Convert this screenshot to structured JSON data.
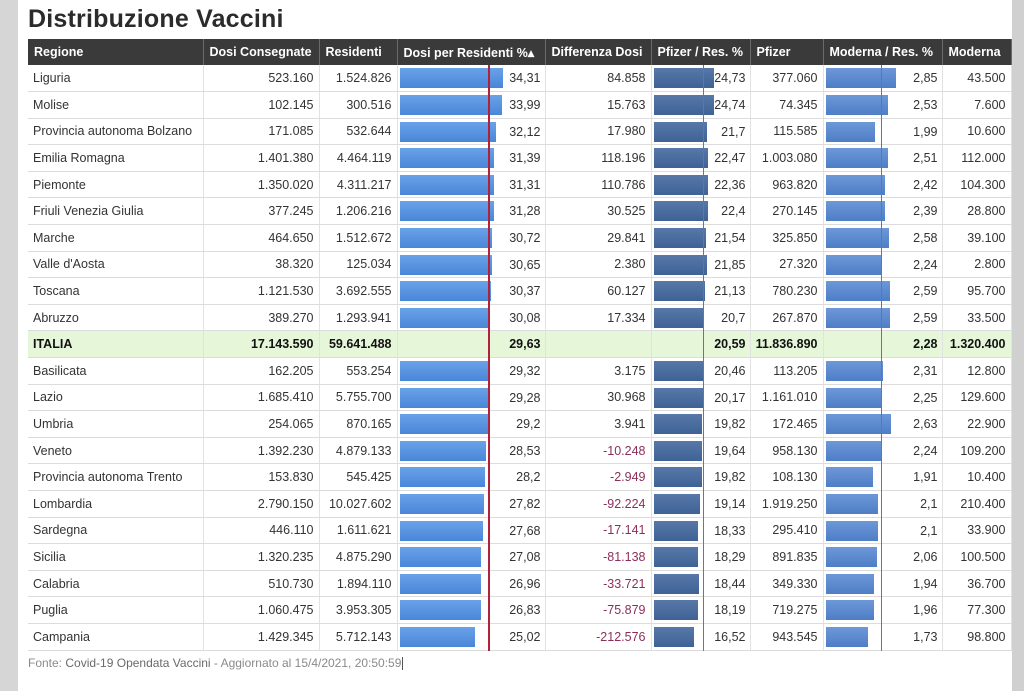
{
  "title": "Distribuzione Vaccini",
  "columns": [
    "Regione",
    "Dosi Consegnate",
    "Residenti",
    "Dosi per Residenti %▴",
    "Differenza Dosi",
    "Pfizer / Res. %",
    "Pfizer",
    "Moderna / Res. %",
    "Moderna"
  ],
  "reference_lines": {
    "dosi_per_residenti": 29.63,
    "pfizer_res": 20.59,
    "moderna_res": 2.28
  },
  "rows": [
    {
      "regione": "Liguria",
      "dosi": "523.160",
      "residenti": "1.524.826",
      "pct": "34,31",
      "pct_value": 34.31,
      "diff": "84.858",
      "pfizer_res": "24,73",
      "pfizer_res_value": 24.73,
      "pfizer": "377.060",
      "moderna_res": "2,85",
      "moderna_res_value": 2.85,
      "moderna": "43.500"
    },
    {
      "regione": "Molise",
      "dosi": "102.145",
      "residenti": "300.516",
      "pct": "33,99",
      "pct_value": 33.99,
      "diff": "15.763",
      "pfizer_res": "24,74",
      "pfizer_res_value": 24.74,
      "pfizer": "74.345",
      "moderna_res": "2,53",
      "moderna_res_value": 2.53,
      "moderna": "7.600"
    },
    {
      "regione": "Provincia autonoma Bolzano",
      "dosi": "171.085",
      "residenti": "532.644",
      "pct": "32,12",
      "pct_value": 32.12,
      "diff": "17.980",
      "pfizer_res": "21,7",
      "pfizer_res_value": 21.7,
      "pfizer": "115.585",
      "moderna_res": "1,99",
      "moderna_res_value": 1.99,
      "moderna": "10.600"
    },
    {
      "regione": "Emilia Romagna",
      "dosi": "1.401.380",
      "residenti": "4.464.119",
      "pct": "31,39",
      "pct_value": 31.39,
      "diff": "118.196",
      "pfizer_res": "22,47",
      "pfizer_res_value": 22.47,
      "pfizer": "1.003.080",
      "moderna_res": "2,51",
      "moderna_res_value": 2.51,
      "moderna": "112.000"
    },
    {
      "regione": "Piemonte",
      "dosi": "1.350.020",
      "residenti": "4.311.217",
      "pct": "31,31",
      "pct_value": 31.31,
      "diff": "110.786",
      "pfizer_res": "22,36",
      "pfizer_res_value": 22.36,
      "pfizer": "963.820",
      "moderna_res": "2,42",
      "moderna_res_value": 2.42,
      "moderna": "104.300"
    },
    {
      "regione": "Friuli Venezia Giulia",
      "dosi": "377.245",
      "residenti": "1.206.216",
      "pct": "31,28",
      "pct_value": 31.28,
      "diff": "30.525",
      "pfizer_res": "22,4",
      "pfizer_res_value": 22.4,
      "pfizer": "270.145",
      "moderna_res": "2,39",
      "moderna_res_value": 2.39,
      "moderna": "28.800"
    },
    {
      "regione": "Marche",
      "dosi": "464.650",
      "residenti": "1.512.672",
      "pct": "30,72",
      "pct_value": 30.72,
      "diff": "29.841",
      "pfizer_res": "21,54",
      "pfizer_res_value": 21.54,
      "pfizer": "325.850",
      "moderna_res": "2,58",
      "moderna_res_value": 2.58,
      "moderna": "39.100"
    },
    {
      "regione": "Valle d'Aosta",
      "dosi": "38.320",
      "residenti": "125.034",
      "pct": "30,65",
      "pct_value": 30.65,
      "diff": "2.380",
      "pfizer_res": "21,85",
      "pfizer_res_value": 21.85,
      "pfizer": "27.320",
      "moderna_res": "2,24",
      "moderna_res_value": 2.24,
      "moderna": "2.800"
    },
    {
      "regione": "Toscana",
      "dosi": "1.121.530",
      "residenti": "3.692.555",
      "pct": "30,37",
      "pct_value": 30.37,
      "diff": "60.127",
      "pfizer_res": "21,13",
      "pfizer_res_value": 21.13,
      "pfizer": "780.230",
      "moderna_res": "2,59",
      "moderna_res_value": 2.59,
      "moderna": "95.700"
    },
    {
      "regione": "Abruzzo",
      "dosi": "389.270",
      "residenti": "1.293.941",
      "pct": "30,08",
      "pct_value": 30.08,
      "diff": "17.334",
      "pfizer_res": "20,7",
      "pfizer_res_value": 20.7,
      "pfizer": "267.870",
      "moderna_res": "2,59",
      "moderna_res_value": 2.59,
      "moderna": "33.500"
    },
    {
      "regione": "ITALIA",
      "total": true,
      "dosi": "17.143.590",
      "residenti": "59.641.488",
      "pct": "29,63",
      "pct_value": 29.63,
      "diff": "",
      "pfizer_res": "20,59",
      "pfizer_res_value": 20.59,
      "pfizer": "11.836.890",
      "moderna_res": "2,28",
      "moderna_res_value": 2.28,
      "moderna": "1.320.400"
    },
    {
      "regione": "Basilicata",
      "dosi": "162.205",
      "residenti": "553.254",
      "pct": "29,32",
      "pct_value": 29.32,
      "diff": "3.175",
      "pfizer_res": "20,46",
      "pfizer_res_value": 20.46,
      "pfizer": "113.205",
      "moderna_res": "2,31",
      "moderna_res_value": 2.31,
      "moderna": "12.800"
    },
    {
      "regione": "Lazio",
      "dosi": "1.685.410",
      "residenti": "5.755.700",
      "pct": "29,28",
      "pct_value": 29.28,
      "diff": "30.968",
      "pfizer_res": "20,17",
      "pfizer_res_value": 20.17,
      "pfizer": "1.161.010",
      "moderna_res": "2,25",
      "moderna_res_value": 2.25,
      "moderna": "129.600"
    },
    {
      "regione": "Umbria",
      "dosi": "254.065",
      "residenti": "870.165",
      "pct": "29,2",
      "pct_value": 29.2,
      "diff": "3.941",
      "pfizer_res": "19,82",
      "pfizer_res_value": 19.82,
      "pfizer": "172.465",
      "moderna_res": "2,63",
      "moderna_res_value": 2.63,
      "moderna": "22.900"
    },
    {
      "regione": "Veneto",
      "dosi": "1.392.230",
      "residenti": "4.879.133",
      "pct": "28,53",
      "pct_value": 28.53,
      "diff": "-10.248",
      "pfizer_res": "19,64",
      "pfizer_res_value": 19.64,
      "pfizer": "958.130",
      "moderna_res": "2,24",
      "moderna_res_value": 2.24,
      "moderna": "109.200"
    },
    {
      "regione": "Provincia autonoma Trento",
      "dosi": "153.830",
      "residenti": "545.425",
      "pct": "28,2",
      "pct_value": 28.2,
      "diff": "-2.949",
      "pfizer_res": "19,82",
      "pfizer_res_value": 19.82,
      "pfizer": "108.130",
      "moderna_res": "1,91",
      "moderna_res_value": 1.91,
      "moderna": "10.400"
    },
    {
      "regione": "Lombardia",
      "dosi": "2.790.150",
      "residenti": "10.027.602",
      "pct": "27,82",
      "pct_value": 27.82,
      "diff": "-92.224",
      "pfizer_res": "19,14",
      "pfizer_res_value": 19.14,
      "pfizer": "1.919.250",
      "moderna_res": "2,1",
      "moderna_res_value": 2.1,
      "moderna": "210.400"
    },
    {
      "regione": "Sardegna",
      "dosi": "446.110",
      "residenti": "1.611.621",
      "pct": "27,68",
      "pct_value": 27.68,
      "diff": "-17.141",
      "pfizer_res": "18,33",
      "pfizer_res_value": 18.33,
      "pfizer": "295.410",
      "moderna_res": "2,1",
      "moderna_res_value": 2.1,
      "moderna": "33.900"
    },
    {
      "regione": "Sicilia",
      "dosi": "1.320.235",
      "residenti": "4.875.290",
      "pct": "27,08",
      "pct_value": 27.08,
      "diff": "-81.138",
      "pfizer_res": "18,29",
      "pfizer_res_value": 18.29,
      "pfizer": "891.835",
      "moderna_res": "2,06",
      "moderna_res_value": 2.06,
      "moderna": "100.500"
    },
    {
      "regione": "Calabria",
      "dosi": "510.730",
      "residenti": "1.894.110",
      "pct": "26,96",
      "pct_value": 26.96,
      "diff": "-33.721",
      "pfizer_res": "18,44",
      "pfizer_res_value": 18.44,
      "pfizer": "349.330",
      "moderna_res": "1,94",
      "moderna_res_value": 1.94,
      "moderna": "36.700"
    },
    {
      "regione": "Puglia",
      "dosi": "1.060.475",
      "residenti": "3.953.305",
      "pct": "26,83",
      "pct_value": 26.83,
      "diff": "-75.879",
      "pfizer_res": "18,19",
      "pfizer_res_value": 18.19,
      "pfizer": "719.275",
      "moderna_res": "1,96",
      "moderna_res_value": 1.96,
      "moderna": "77.300"
    },
    {
      "regione": "Campania",
      "dosi": "1.429.345",
      "residenti": "5.712.143",
      "pct": "25,02",
      "pct_value": 25.02,
      "diff": "-212.576",
      "pfizer_res": "16,52",
      "pfizer_res_value": 16.52,
      "pfizer": "943.545",
      "moderna_res": "1,73",
      "moderna_res_value": 1.73,
      "moderna": "98.800"
    }
  ],
  "footer": {
    "label": "Fonte:",
    "source": "Covid-19 Opendata Vaccini",
    "separator": " - Aggiornato al ",
    "updated": "15/4/2021, 20:50:59"
  }
}
